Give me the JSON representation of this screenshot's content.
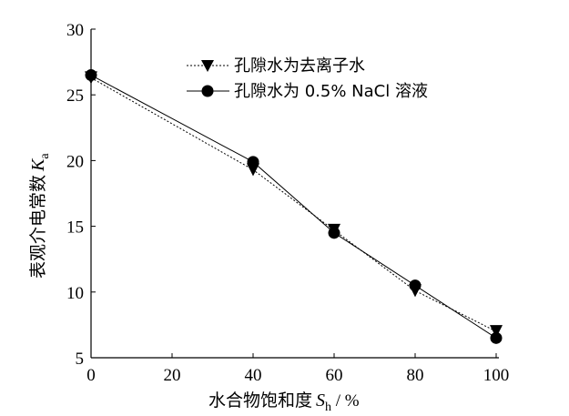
{
  "chart_data": {
    "type": "line",
    "x": [
      0,
      40,
      60,
      80,
      100
    ],
    "xlim": [
      0,
      100
    ],
    "ylim": [
      5,
      30
    ],
    "xticks": [
      "0",
      "20",
      "40",
      "60",
      "80",
      "100"
    ],
    "yticks": [
      "5",
      "10",
      "15",
      "20",
      "25",
      "30"
    ],
    "xlabel": {
      "text": "水合物饱和度",
      "var": "S",
      "sub": "h",
      "unit": " / %"
    },
    "ylabel": {
      "text": "表观介电常数",
      "var": "K",
      "sub": "a"
    },
    "legend_position": "top-right",
    "series": [
      {
        "name": "孔隙水为去离子水",
        "marker": "triangle-down",
        "line_style": "dotted",
        "color": "#000000",
        "values": [
          26.3,
          19.3,
          14.7,
          10.1,
          7.0
        ]
      },
      {
        "name": "孔隙水为 0.5% NaCl 溶液",
        "marker": "circle",
        "line_style": "solid",
        "color": "#000000",
        "values": [
          26.5,
          19.9,
          14.5,
          10.5,
          6.5
        ]
      }
    ]
  }
}
